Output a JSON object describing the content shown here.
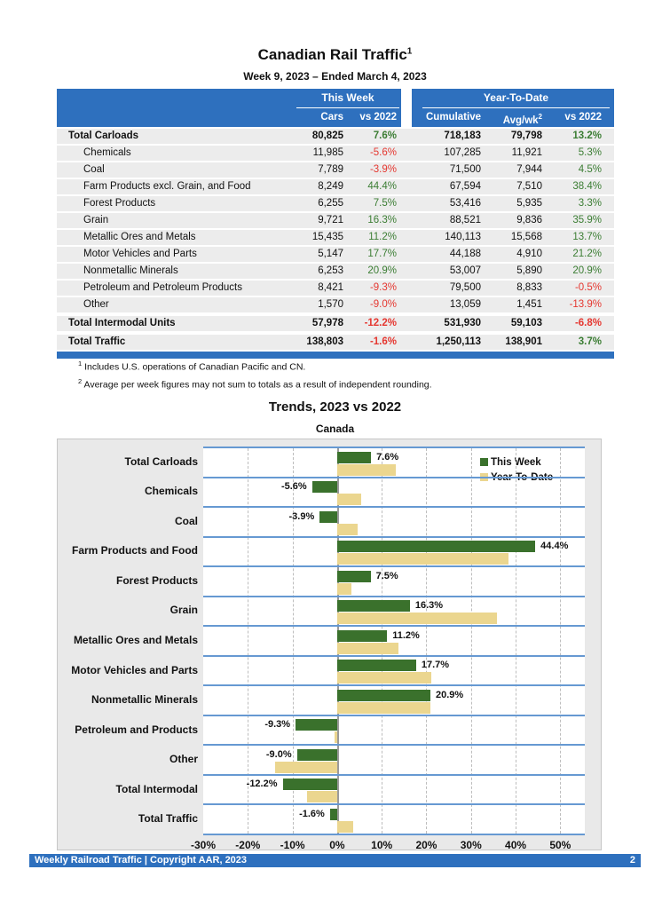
{
  "page": {
    "title": "Canadian Rail Traffic",
    "title_sup": "1",
    "subtitle": "Week 9, 2023 – Ended March 4, 2023",
    "footer_text": "Weekly Railroad Traffic | Copyright AAR, 2023",
    "page_number": "2"
  },
  "colors": {
    "accent_blue": "#2e70be",
    "row_separator_blue": "#6699d2",
    "positive_green": "#3b7d33",
    "negative_red": "#e53730",
    "bar_green": "#3a712c",
    "bar_tan": "#ebd68f"
  },
  "table": {
    "group_this_week": "This Week",
    "group_ytd": "Year-To-Date",
    "col_cars": "Cars",
    "col_vs2022_week": "vs 2022",
    "col_cumulative": "Cumulative",
    "col_avgwk": "Avg/wk",
    "col_avgwk_sup": "2",
    "col_vs2022_ytd": "vs 2022",
    "rows": [
      {
        "label": "Total Carloads",
        "bold": true,
        "indent": false,
        "cars": "80,825",
        "vs_week": "7.6%",
        "cumulative": "718,183",
        "avg_wk": "79,798",
        "vs_ytd": "13.2%",
        "thick": false
      },
      {
        "label": "Chemicals",
        "bold": false,
        "indent": true,
        "cars": "11,985",
        "vs_week": "-5.6%",
        "cumulative": "107,285",
        "avg_wk": "11,921",
        "vs_ytd": "5.3%",
        "thick": false
      },
      {
        "label": "Coal",
        "bold": false,
        "indent": true,
        "cars": "7,789",
        "vs_week": "-3.9%",
        "cumulative": "71,500",
        "avg_wk": "7,944",
        "vs_ytd": "4.5%",
        "thick": false
      },
      {
        "label": "Farm Products excl. Grain, and Food",
        "bold": false,
        "indent": true,
        "cars": "8,249",
        "vs_week": "44.4%",
        "cumulative": "67,594",
        "avg_wk": "7,510",
        "vs_ytd": "38.4%",
        "thick": false
      },
      {
        "label": "Forest Products",
        "bold": false,
        "indent": true,
        "cars": "6,255",
        "vs_week": "7.5%",
        "cumulative": "53,416",
        "avg_wk": "5,935",
        "vs_ytd": "3.3%",
        "thick": false
      },
      {
        "label": "Grain",
        "bold": false,
        "indent": true,
        "cars": "9,721",
        "vs_week": "16.3%",
        "cumulative": "88,521",
        "avg_wk": "9,836",
        "vs_ytd": "35.9%",
        "thick": false
      },
      {
        "label": "Metallic Ores and Metals",
        "bold": false,
        "indent": true,
        "cars": "15,435",
        "vs_week": "11.2%",
        "cumulative": "140,113",
        "avg_wk": "15,568",
        "vs_ytd": "13.7%",
        "thick": false
      },
      {
        "label": "Motor Vehicles and Parts",
        "bold": false,
        "indent": true,
        "cars": "5,147",
        "vs_week": "17.7%",
        "cumulative": "44,188",
        "avg_wk": "4,910",
        "vs_ytd": "21.2%",
        "thick": false
      },
      {
        "label": "Nonmetallic Minerals",
        "bold": false,
        "indent": true,
        "cars": "6,253",
        "vs_week": "20.9%",
        "cumulative": "53,007",
        "avg_wk": "5,890",
        "vs_ytd": "20.9%",
        "thick": false
      },
      {
        "label": "Petroleum and Petroleum Products",
        "bold": false,
        "indent": true,
        "cars": "8,421",
        "vs_week": "-9.3%",
        "cumulative": "79,500",
        "avg_wk": "8,833",
        "vs_ytd": "-0.5%",
        "thick": false
      },
      {
        "label": "Other",
        "bold": false,
        "indent": true,
        "cars": "1,570",
        "vs_week": "-9.0%",
        "cumulative": "13,059",
        "avg_wk": "1,451",
        "vs_ytd": "-13.9%",
        "thick": false
      },
      {
        "label": "Total Intermodal Units",
        "bold": true,
        "indent": false,
        "cars": "57,978",
        "vs_week": "-12.2%",
        "cumulative": "531,930",
        "avg_wk": "59,103",
        "vs_ytd": "-6.8%",
        "thick": true
      },
      {
        "label": "Total Traffic",
        "bold": true,
        "indent": false,
        "cars": "138,803",
        "vs_week": "-1.6%",
        "cumulative": "1,250,113",
        "avg_wk": "138,901",
        "vs_ytd": "3.7%",
        "thick": true
      }
    ]
  },
  "footnotes": [
    {
      "sup": "1",
      "text": "Includes U.S. operations of Canadian Pacific and CN."
    },
    {
      "sup": "2",
      "text": "Average per week figures may not sum to totals as a result of independent rounding."
    }
  ],
  "chart_data": {
    "type": "bar",
    "orientation": "horizontal",
    "title": "Trends, 2023 vs 2022",
    "subtitle": "Canada",
    "categories": [
      "Total Carloads",
      "Chemicals",
      "Coal",
      "Farm Products and Food",
      "Forest Products",
      "Grain",
      "Metallic Ores and Metals",
      "Motor Vehicles and Parts",
      "Nonmetallic Minerals",
      "Petroleum and Products",
      "Other",
      "Total Intermodal",
      "Total Traffic"
    ],
    "series": [
      {
        "name": "This Week",
        "color": "#3a712c",
        "values": [
          7.6,
          -5.6,
          -3.9,
          44.4,
          7.5,
          16.3,
          11.2,
          17.7,
          20.9,
          -9.3,
          -9.0,
          -12.2,
          -1.6
        ]
      },
      {
        "name": "Year-To-Date",
        "color": "#ebd68f",
        "values": [
          13.2,
          5.3,
          4.5,
          38.4,
          3.3,
          35.9,
          13.7,
          21.2,
          20.9,
          -0.5,
          -13.9,
          -6.8,
          3.7
        ]
      }
    ],
    "bar_labels": [
      "7.6%",
      "-5.6%",
      "-3.9%",
      "44.4%",
      "7.5%",
      "16.3%",
      "11.2%",
      "17.7%",
      "20.9%",
      "-9.3%",
      "-9.0%",
      "-12.2%",
      "-1.6%"
    ],
    "x_ticks": [
      "-30%",
      "-20%",
      "-10%",
      "0%",
      "10%",
      "20%",
      "30%",
      "40%",
      "50%"
    ],
    "x_tick_values": [
      -30,
      -20,
      -10,
      0,
      10,
      20,
      30,
      40,
      50
    ],
    "xlim": [
      -30,
      55.5
    ],
    "legend_position": "top-right",
    "grid": "dashed-vertical"
  }
}
